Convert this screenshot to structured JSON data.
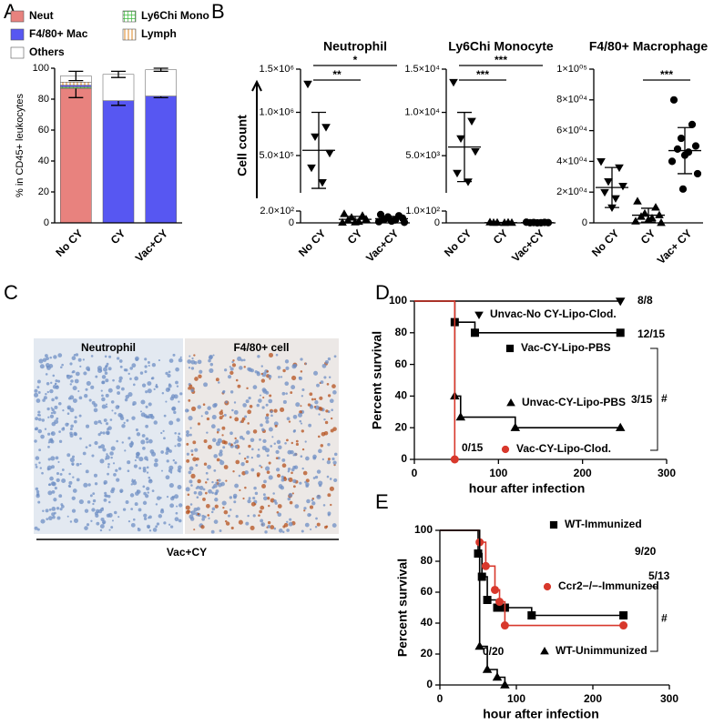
{
  "panel_labels": [
    "A",
    "B",
    "C",
    "D",
    "E"
  ],
  "histology": {
    "titles": [
      "Neutrophil",
      "F4/80+ cell"
    ],
    "caption": "Vac+CY"
  },
  "chart_data": [
    {
      "type": "stacked_bar",
      "categories": [
        "No CY",
        "CY",
        "Vac+CY"
      ],
      "ylabel": "% in CD45+ leukocytes",
      "ylim": [
        0,
        100
      ],
      "yticks": [
        0,
        20,
        40,
        60,
        80,
        100
      ],
      "series": [
        {
          "name": "Neut",
          "color": "#e8827e",
          "values": [
            87,
            0,
            0
          ],
          "errors": [
            6,
            null,
            null
          ]
        },
        {
          "name": "Ly6Chi Mono",
          "color": "#3cb93c",
          "pattern": "grid",
          "values": [
            1,
            0,
            0
          ],
          "errors": [
            null,
            null,
            null
          ]
        },
        {
          "name": "F4/80+ Mac",
          "color": "#5757f2",
          "values": [
            1,
            79,
            82
          ],
          "errors": [
            null,
            3,
            1
          ]
        },
        {
          "name": "Lymph",
          "color": "#e8a860",
          "pattern": "vertical",
          "values": [
            2,
            0,
            0
          ],
          "errors": [
            null,
            null,
            null
          ]
        },
        {
          "name": "Others",
          "color": "#ffffff",
          "values": [
            4,
            17,
            17
          ],
          "errors": [
            3,
            2,
            1
          ]
        }
      ]
    },
    {
      "type": "dot_plot",
      "title": "Neutrophil",
      "ylabel": "Cell count",
      "categories": [
        "No CY",
        "CY",
        "Vac+CY"
      ],
      "markers": [
        "triangle-down",
        "triangle",
        "hexagon"
      ],
      "ylim": [
        0,
        1500000
      ],
      "axis_break": [
        200,
        68000
      ],
      "yticks": [
        0,
        {
          "value": 200,
          "label": "2.0×10²"
        },
        {
          "value": 500000,
          "label": "5.0×10⁵"
        },
        {
          "value": 1000000,
          "label": "1.0×10⁶"
        },
        {
          "value": 1500000,
          "label": "1.5×10⁶"
        }
      ],
      "values": [
        [
          1330000,
          830000,
          720000,
          530000,
          360000,
          190000
        ],
        [
          150,
          120,
          90,
          60,
          40,
          20,
          10,
          5
        ],
        [
          140,
          120,
          100,
          80,
          60,
          50,
          30,
          20,
          10
        ]
      ],
      "means": [
        560000,
        60,
        70
      ],
      "sds": [
        440000,
        50,
        40
      ],
      "comparisons": [
        {
          "label": "**",
          "groups": [
            "No CY",
            "CY"
          ]
        },
        {
          "label": "*",
          "groups": [
            "No CY",
            "Vac+CY"
          ]
        }
      ]
    },
    {
      "type": "dot_plot",
      "title": "Ly6Chi Monocyte",
      "categories": [
        "No CY",
        "CY",
        "Vac+CY"
      ],
      "markers": [
        "triangle-down",
        "triangle",
        "hexagon"
      ],
      "ylim": [
        0,
        15000
      ],
      "axis_break": [
        100,
        700
      ],
      "yticks": [
        0,
        {
          "value": 100,
          "label": "1.0×10²"
        },
        {
          "value": 5000,
          "label": "5.0×10³"
        },
        {
          "value": 10000,
          "label": "1.0×10⁴"
        },
        {
          "value": 15000,
          "label": "1.5×10⁴"
        }
      ],
      "values": [
        [
          13500,
          9000,
          7000,
          5500,
          3000,
          2000
        ],
        [
          5,
          3,
          2,
          1,
          1,
          0
        ],
        [
          6,
          4,
          3,
          2,
          1,
          1,
          0
        ]
      ],
      "means": [
        6000,
        2,
        2
      ],
      "sds": [
        4000,
        2,
        2
      ],
      "comparisons": [
        {
          "label": "***",
          "groups": [
            "No CY",
            "CY"
          ]
        },
        {
          "label": "***",
          "groups": [
            "No CY",
            "Vac+CY"
          ]
        }
      ]
    },
    {
      "type": "dot_plot",
      "title": "F4/80+ Macrophage",
      "categories": [
        "No CY",
        "CY",
        "Vac+ CY"
      ],
      "markers": [
        "triangle-down",
        "triangle",
        "circle"
      ],
      "ylim": [
        0,
        100000
      ],
      "yticks": [
        0,
        {
          "value": 20000,
          "label": "2×10⁰⁴"
        },
        {
          "value": 40000,
          "label": "4×10⁰⁴"
        },
        {
          "value": 60000,
          "label": "6×10⁰⁴"
        },
        {
          "value": 80000,
          "label": "8×10⁰⁴"
        },
        {
          "value": 100000,
          "label": "1×10⁰⁵"
        }
      ],
      "values": [
        [
          40000,
          36000,
          27000,
          24000,
          20000,
          16000,
          10000
        ],
        [
          14000,
          10000,
          6000,
          5000,
          4000,
          3000,
          2000,
          1000,
          0
        ],
        [
          80000,
          64000,
          55000,
          50000,
          48000,
          46000,
          44000,
          40000,
          32000,
          22000
        ]
      ],
      "means": [
        23000,
        5000,
        47000
      ],
      "sds": [
        13000,
        4500,
        15000
      ],
      "comparisons": [
        {
          "label": "***",
          "groups": [
            "CY",
            "Vac+ CY"
          ]
        }
      ]
    },
    {
      "type": "survival",
      "xlabel": "hour after infection",
      "ylabel": "Percent survival",
      "xlim": [
        0,
        300
      ],
      "xticks": [
        0,
        100,
        200,
        300
      ],
      "ylim": [
        0,
        100
      ],
      "yticks": [
        0,
        20,
        40,
        60,
        80,
        100
      ],
      "bracket_label": "#",
      "series": [
        {
          "name": "Unvac-No CY-Lipo-Clod.",
          "color": "#000000",
          "marker": "triangle-down",
          "x": [
            0,
            245
          ],
          "y": [
            100,
            100
          ],
          "end_label": "8/8"
        },
        {
          "name": "Vac-CY-Lipo-PBS",
          "color": "#000000",
          "marker": "square",
          "x": [
            0,
            48,
            72,
            245
          ],
          "y": [
            100,
            86.7,
            80,
            80
          ],
          "end_label": "12/15"
        },
        {
          "name": "Unvac-CY-Lipo-PBS",
          "color": "#000000",
          "marker": "triangle",
          "x": [
            0,
            48,
            55,
            120,
            245
          ],
          "y": [
            100,
            40,
            26.7,
            20,
            20
          ],
          "end_label": "3/15"
        },
        {
          "name": "Vac-CY-Lipo-Clod.",
          "color": "#d8382c",
          "marker": "circle",
          "x": [
            0,
            48
          ],
          "y": [
            100,
            0
          ],
          "end_label": "0/15"
        }
      ]
    },
    {
      "type": "survival",
      "xlabel": "hour after infection",
      "ylabel": "Percent survival",
      "xlim": [
        0,
        300
      ],
      "xticks": [
        0,
        100,
        200,
        300
      ],
      "ylim": [
        0,
        100
      ],
      "yticks": [
        0,
        20,
        40,
        60,
        80,
        100
      ],
      "bracket_label": "#",
      "series": [
        {
          "name": "WT-Immunized",
          "color": "#000000",
          "marker": "square",
          "x": [
            0,
            50,
            55,
            62,
            75,
            85,
            120,
            240
          ],
          "y": [
            100,
            85,
            70,
            55,
            50,
            50,
            45,
            45
          ],
          "end_label": "9/20"
        },
        {
          "name": "Ccr2−/−-Immunized",
          "color": "#d8382c",
          "marker": "circle",
          "x": [
            0,
            52,
            60,
            72,
            78,
            85,
            240
          ],
          "y": [
            100,
            92.3,
            76.9,
            61.5,
            53.8,
            38.5,
            38.5
          ],
          "end_label": "5/13"
        },
        {
          "name": "WT-Unimmunized",
          "color": "#000000",
          "marker": "triangle",
          "x": [
            0,
            52,
            62,
            75,
            85
          ],
          "y": [
            100,
            25,
            10,
            5,
            0
          ],
          "end_label": "0/20"
        }
      ]
    }
  ]
}
